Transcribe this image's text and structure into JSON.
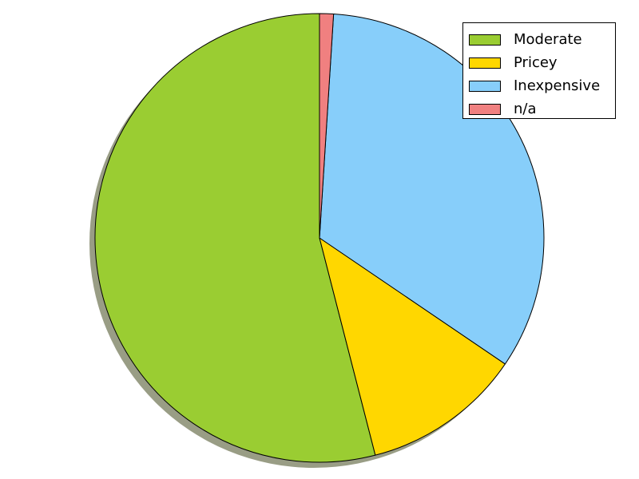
{
  "chart_data": {
    "type": "pie",
    "title": "",
    "legend_position": "top-right",
    "shadow": true,
    "start_angle_deg": 90,
    "direction": "counterclockwise",
    "slices": [
      {
        "label": "Moderate",
        "value": 54.0,
        "color": "#9acd32"
      },
      {
        "label": "Pricey",
        "value": 11.5,
        "color": "#ffd700"
      },
      {
        "label": "Inexpensive",
        "value": 33.5,
        "color": "#87cefa"
      },
      {
        "label": "n/a",
        "value": 1.0,
        "color": "#f08080"
      }
    ]
  }
}
